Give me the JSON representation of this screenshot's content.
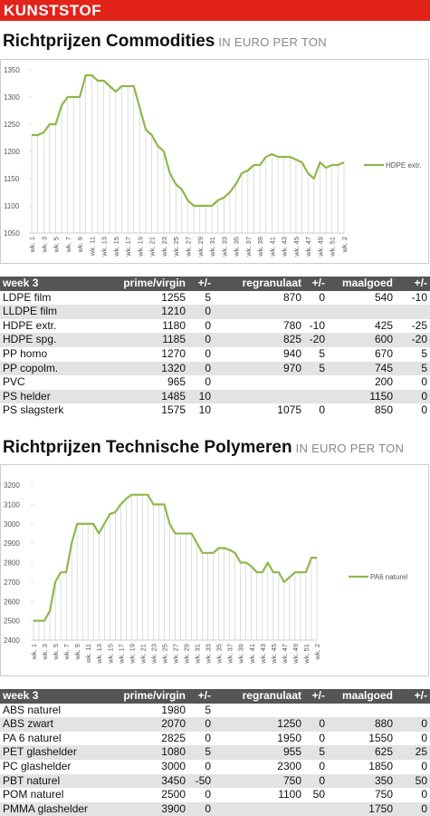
{
  "header": "KUNSTSTOF",
  "sections": [
    {
      "title": "Richtprijzen Commodities",
      "subtitle": "IN EURO PER TON",
      "table": {
        "header": [
          "week 3",
          "prime/virgin",
          "+/-",
          "regranulaat",
          "+/-",
          "maalgoed",
          "+/-"
        ],
        "rows": [
          [
            "LDPE film",
            1255,
            5,
            870,
            0,
            540,
            -10
          ],
          [
            "LLDPE film",
            1210,
            0,
            null,
            null,
            null,
            null
          ],
          [
            "HDPE extr.",
            1180,
            0,
            780,
            -10,
            425,
            -25
          ],
          [
            "HDPE spg.",
            1185,
            0,
            825,
            -20,
            600,
            -20
          ],
          [
            "PP homo",
            1270,
            0,
            940,
            5,
            670,
            5
          ],
          [
            "PP copolm.",
            1320,
            0,
            970,
            5,
            745,
            5
          ],
          [
            "PVC",
            965,
            0,
            null,
            null,
            200,
            0
          ],
          [
            "PS helder",
            1485,
            10,
            null,
            null,
            1150,
            0
          ],
          [
            "PS slagsterk",
            1575,
            10,
            1075,
            0,
            850,
            0
          ]
        ]
      }
    },
    {
      "title": "Richtprijzen Technische Polymeren",
      "subtitle": "IN EURO PER TON",
      "table": {
        "header": [
          "week 3",
          "prime/virgin",
          "+/-",
          "regranulaat",
          "+/-",
          "maalgoed",
          "+/-"
        ],
        "rows": [
          [
            "ABS naturel",
            1980,
            5,
            null,
            null,
            null,
            null
          ],
          [
            "ABS zwart",
            2070,
            0,
            1250,
            0,
            880,
            0
          ],
          [
            "PA 6 naturel",
            2825,
            0,
            1950,
            0,
            1550,
            0
          ],
          [
            "PET glashelder",
            1080,
            5,
            955,
            5,
            625,
            25
          ],
          [
            "PC glashelder",
            3000,
            0,
            2300,
            0,
            1850,
            0
          ],
          [
            "PBT naturel",
            3450,
            -50,
            750,
            0,
            350,
            50
          ],
          [
            "POM naturel",
            2500,
            0,
            1100,
            50,
            750,
            0
          ],
          [
            "PMMA glashelder",
            3900,
            0,
            null,
            null,
            1750,
            0
          ]
        ]
      }
    }
  ],
  "chart_data": [
    {
      "type": "line",
      "drop_lines": true,
      "categories": [
        "wk. 1",
        null,
        "wk. 3",
        null,
        "wk. 5",
        null,
        "wk. 7",
        null,
        "wk. 9",
        null,
        "wk. 11",
        null,
        "wk. 13",
        null,
        "wk. 15",
        null,
        "wk. 17",
        null,
        "wk. 19",
        null,
        "wk. 21",
        null,
        "wk. 23",
        null,
        "wk. 25",
        null,
        "wk. 27",
        null,
        "wk. 29",
        null,
        "wk. 31",
        null,
        "wk. 33",
        null,
        "wk. 35",
        null,
        "wk. 37",
        null,
        "wk. 39",
        null,
        "wk. 41",
        null,
        "wk. 43",
        null,
        "wk. 45",
        null,
        "wk. 47",
        null,
        "wk. 49",
        null,
        "wk. 51",
        null,
        "wk. 2"
      ],
      "series": [
        {
          "name": "HDPE extr.",
          "color": "#8db84a",
          "values": [
            1230,
            1230,
            1235,
            1250,
            1250,
            1285,
            1300,
            1300,
            1300,
            1340,
            1340,
            1330,
            1330,
            1320,
            1310,
            1320,
            1320,
            1320,
            1280,
            1240,
            1230,
            1210,
            1200,
            1160,
            1140,
            1130,
            1110,
            1100,
            1100,
            1100,
            1100,
            1110,
            1115,
            1125,
            1140,
            1160,
            1165,
            1175,
            1175,
            1190,
            1195,
            1190,
            1190,
            1190,
            1185,
            1180,
            1160,
            1150,
            1180,
            1170,
            1175,
            1175,
            1180
          ]
        }
      ],
      "ylim": [
        1050,
        1350
      ],
      "yticks": [
        1050,
        1100,
        1150,
        1200,
        1250,
        1300,
        1350
      ],
      "legend": "right"
    },
    {
      "type": "line",
      "drop_lines": true,
      "categories": [
        "wk. 1",
        null,
        "wk. 3",
        null,
        "wk. 5",
        null,
        "wk. 7",
        null,
        "wk. 9",
        null,
        "wk. 11",
        null,
        "wk. 13",
        null,
        "wk. 15",
        null,
        "wk. 17",
        null,
        "wk. 19",
        null,
        "wk. 21",
        null,
        "wk. 23",
        null,
        "wk. 25",
        null,
        "wk. 27",
        null,
        "wk. 29",
        null,
        "wk. 31",
        null,
        "wk. 33",
        null,
        "wk. 35",
        null,
        "wk. 37",
        null,
        "wk. 39",
        null,
        "wk. 41",
        null,
        "wk. 43",
        null,
        "wk. 45",
        null,
        "wk. 47",
        null,
        "wk. 49",
        null,
        "wk. 51",
        null,
        "wk. 2"
      ],
      "series": [
        {
          "name": "PA6 naturel",
          "color": "#8db84a",
          "values": [
            2500,
            2500,
            2500,
            2550,
            2700,
            2750,
            2750,
            2900,
            3000,
            3000,
            3000,
            3000,
            2950,
            3000,
            3050,
            3060,
            3100,
            3130,
            3150,
            3150,
            3150,
            3150,
            3100,
            3100,
            3100,
            3000,
            2950,
            2950,
            2950,
            2950,
            2900,
            2850,
            2850,
            2850,
            2875,
            2875,
            2865,
            2850,
            2800,
            2800,
            2780,
            2750,
            2750,
            2800,
            2750,
            2750,
            2700,
            2725,
            2750,
            2750,
            2750,
            2825,
            2825
          ]
        }
      ],
      "ylim": [
        2400,
        3200
      ],
      "yticks": [
        2400,
        2500,
        2600,
        2700,
        2800,
        2900,
        3000,
        3100,
        3200
      ],
      "legend": "right"
    }
  ]
}
